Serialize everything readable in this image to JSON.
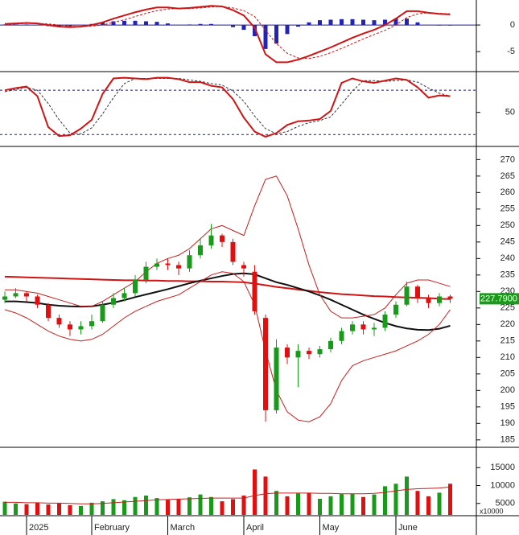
{
  "chart_data": [
    {
      "type": "macd",
      "ylim": [
        -8.6,
        4.7
      ],
      "yticks": [
        -5,
        0
      ],
      "macd": {
        "color": "#d01414",
        "values": [
          0.2,
          0.3,
          0.4,
          0.3,
          0,
          -0.3,
          -0.4,
          -0.3,
          0,
          0.5,
          1.2,
          1.8,
          2.4,
          2.9,
          3.3,
          3.3,
          3.1,
          3.2,
          3.4,
          3.6,
          3.5,
          2.8,
          1.8,
          -0.5,
          -5.5,
          -7,
          -7,
          -6.5,
          -5.8,
          -5,
          -4.2,
          -3.3,
          -2.4,
          -1.6,
          -0.9,
          0,
          1.2,
          2.6,
          2.6,
          2.3,
          2.1,
          2.0
        ]
      },
      "signal": {
        "color": "#d01414",
        "style": "dashed",
        "values": [
          0.1,
          0.2,
          0.3,
          0.3,
          0.2,
          0,
          -0.2,
          -0.3,
          -0.2,
          0,
          0.5,
          1,
          1.6,
          2.2,
          2.7,
          3,
          3.1,
          3.1,
          3.2,
          3.4,
          3.5,
          3.2,
          2.7,
          1.6,
          -1,
          -3.5,
          -5.3,
          -6.2,
          -6.3,
          -5.9,
          -5.2,
          -4.4,
          -3.5,
          -2.6,
          -1.8,
          -1,
          0,
          1.4,
          2.1,
          2.3,
          2.2,
          2.1
        ]
      },
      "histogram": {
        "color": "#2424b4",
        "values": [
          0.1,
          0.1,
          0.1,
          0,
          -0.2,
          -0.3,
          -0.2,
          0,
          0.2,
          0.5,
          0.7,
          0.8,
          0.8,
          0.7,
          0.6,
          0.3,
          0,
          0.1,
          0.2,
          0.2,
          0,
          -0.4,
          -0.9,
          -2.1,
          -4.5,
          -3.5,
          -1.7,
          -0.3,
          0.5,
          0.9,
          1,
          1.1,
          1.1,
          1,
          0.9,
          1,
          1.2,
          1.2,
          0.5,
          0,
          -0.1,
          -0.1
        ]
      }
    },
    {
      "type": "stochastic",
      "ylim": [
        5,
        102
      ],
      "yticks": [
        50
      ],
      "levels": [
        20,
        80
      ],
      "k": {
        "color": "#d01414",
        "values": [
          80,
          83,
          85,
          72,
          30,
          18,
          19,
          28,
          40,
          75,
          96,
          97,
          96,
          95,
          97,
          97,
          95,
          91,
          91,
          86,
          84,
          68,
          43,
          24,
          17,
          22,
          33,
          38,
          39,
          41,
          52,
          90,
          96,
          92,
          90,
          93,
          96,
          94,
          84,
          70,
          73,
          72
        ]
      },
      "d": {
        "color": "#333333",
        "style": "dashed",
        "values": [
          78,
          81,
          84,
          80,
          62,
          40,
          22,
          21,
          29,
          48,
          70,
          89,
          96,
          96,
          96,
          96,
          96,
          94,
          92,
          89,
          87,
          79,
          65,
          45,
          28,
          21,
          24,
          31,
          36,
          39,
          44,
          61,
          79,
          93,
          93,
          92,
          93,
          94,
          91,
          83,
          76,
          72
        ]
      }
    },
    {
      "type": "candlestick",
      "ylim": [
        183,
        273.5
      ],
      "yticks": [
        185,
        190,
        195,
        200,
        205,
        210,
        215,
        220,
        225,
        230,
        235,
        240,
        245,
        250,
        255,
        260,
        265,
        270
      ],
      "up_color": "#1a9a1a",
      "down_color": "#e01010",
      "last_label": "227.7900",
      "last_label_color": "#1a9a1a",
      "open": [
        227.5,
        228.5,
        229.5,
        228.5,
        226,
        222,
        220,
        218.5,
        219.5,
        221,
        226,
        228,
        229.5,
        233.5,
        237.5,
        238.5,
        238,
        237,
        241,
        244,
        247,
        245,
        238,
        236,
        222,
        194,
        213,
        210,
        212,
        211,
        212.5,
        215,
        218,
        220,
        218.5,
        219,
        223,
        226,
        231.5,
        228,
        226.5,
        228.5
      ],
      "high": [
        230,
        231,
        230,
        229,
        226.5,
        223,
        221,
        221,
        223,
        227,
        229.5,
        231,
        235,
        239,
        240,
        240,
        239,
        242.5,
        246,
        250.5,
        247.5,
        246,
        239,
        238,
        223,
        215.5,
        214,
        214,
        213,
        213.5,
        216,
        219,
        221,
        221,
        220.5,
        224,
        227,
        233,
        232,
        229,
        229.5,
        229
      ],
      "low": [
        226.5,
        228,
        227,
        225,
        221,
        219,
        216.5,
        217,
        218.5,
        220.5,
        225,
        227,
        228.5,
        232.5,
        236.5,
        236.5,
        235,
        236,
        240,
        243,
        243.5,
        238,
        234.5,
        223,
        190.5,
        193,
        208,
        201,
        209.5,
        210,
        211.5,
        214,
        217,
        217,
        216.5,
        218,
        222,
        225.5,
        226.5,
        225,
        225.5,
        226.5
      ],
      "close": [
        228.5,
        229.5,
        228.5,
        226,
        222,
        220,
        218.5,
        219.5,
        221,
        226,
        228,
        229.5,
        233.5,
        237.5,
        238.5,
        238,
        237,
        241,
        244,
        247,
        245,
        239,
        237,
        224,
        194,
        213,
        210,
        212,
        211,
        212.5,
        215,
        218,
        220,
        218.5,
        219,
        223,
        226,
        231.5,
        228,
        226.5,
        228.5,
        227.79
      ],
      "lines": [
        {
          "color": "#d01414",
          "width": 2,
          "values": [
            234.5,
            234.4,
            234.3,
            234.2,
            234.1,
            234,
            233.9,
            233.8,
            233.7,
            233.6,
            233.5,
            233.4,
            233.4,
            233.3,
            233.3,
            233.2,
            233.2,
            233.1,
            233.1,
            233,
            233,
            232.9,
            232.8,
            232.4,
            231.9,
            231.4,
            231,
            230.6,
            230.2,
            229.8,
            229.5,
            229.2,
            229,
            228.8,
            228.6,
            228.5,
            228.3,
            228.2,
            228.1,
            228,
            227.8,
            227.7
          ]
        },
        {
          "color": "#111111",
          "width": 2,
          "values": [
            227,
            227,
            226.8,
            226.5,
            226,
            225.7,
            225.5,
            225.4,
            225.5,
            226,
            226.6,
            227.4,
            228.3,
            229.1,
            229.9,
            230.7,
            231.6,
            232.5,
            233.3,
            234,
            234.7,
            235.3,
            235.5,
            235.2,
            234,
            232.8,
            232,
            231,
            230,
            228.8,
            227.5,
            226,
            224.5,
            223,
            221.7,
            220.5,
            219.5,
            218.8,
            218.4,
            218.3,
            218.7,
            219.6
          ]
        },
        {
          "color": "#c81e1e",
          "width": 1,
          "values": [
            230.5,
            230.5,
            230,
            229.5,
            228.5,
            227.5,
            226.5,
            225.5,
            225.5,
            227,
            229,
            231,
            233,
            236,
            238.5,
            240,
            241,
            243,
            246,
            249,
            250,
            248.5,
            247,
            256,
            264,
            265,
            259,
            249,
            238,
            229,
            224,
            222,
            222,
            222.5,
            223,
            225,
            229,
            232.5,
            233.5,
            233.5,
            232.5,
            231.5
          ]
        },
        {
          "color": "#c81e1e",
          "width": 1,
          "values": [
            224.5,
            223.5,
            222,
            220,
            218,
            216.5,
            215.5,
            215,
            215.5,
            217,
            219.5,
            222,
            224,
            225.5,
            227,
            228,
            229,
            231,
            233,
            235,
            236,
            235.5,
            233,
            226,
            212,
            200,
            193.5,
            191,
            190.5,
            192,
            196,
            203,
            207.5,
            209,
            210,
            211,
            212,
            213.5,
            215,
            217,
            220,
            224.5
          ]
        }
      ]
    },
    {
      "type": "bar",
      "ylim": [
        1800,
        20000
      ],
      "yticks": [
        5000,
        10000,
        15000
      ],
      "unit_label": "x10000",
      "categories": [
        null,
        null,
        "2025",
        null,
        null,
        null,
        null,
        null,
        "February",
        null,
        null,
        null,
        null,
        null,
        null,
        "March",
        null,
        null,
        null,
        null,
        null,
        null,
        "April",
        null,
        null,
        null,
        null,
        null,
        null,
        "May",
        null,
        null,
        null,
        null,
        null,
        null,
        "June",
        null,
        null,
        null,
        null,
        null
      ],
      "values": [
        5500,
        5000,
        4800,
        5200,
        4700,
        5000,
        4500,
        4300,
        5200,
        5600,
        6200,
        5900,
        6800,
        7200,
        6500,
        6000,
        6300,
        6700,
        7500,
        6800,
        5600,
        6200,
        7200,
        14500,
        12500,
        8500,
        7000,
        7800,
        8000,
        6300,
        7000,
        7600,
        7700,
        6800,
        7500,
        9800,
        10500,
        12500,
        8500,
        7000,
        8000,
        10500
      ],
      "ma": {
        "color": "#c81e1e",
        "values": [
          5300,
          5300,
          5200,
          5200,
          5100,
          5100,
          5000,
          4900,
          4900,
          5000,
          5200,
          5400,
          5600,
          5800,
          6000,
          6100,
          6200,
          6300,
          6400,
          6500,
          6500,
          6500,
          6500,
          7200,
          7700,
          7900,
          7900,
          7900,
          7900,
          7800,
          7800,
          7700,
          7700,
          7700,
          7800,
          8100,
          8500,
          8900,
          9100,
          9200,
          9300,
          9600
        ]
      }
    }
  ]
}
